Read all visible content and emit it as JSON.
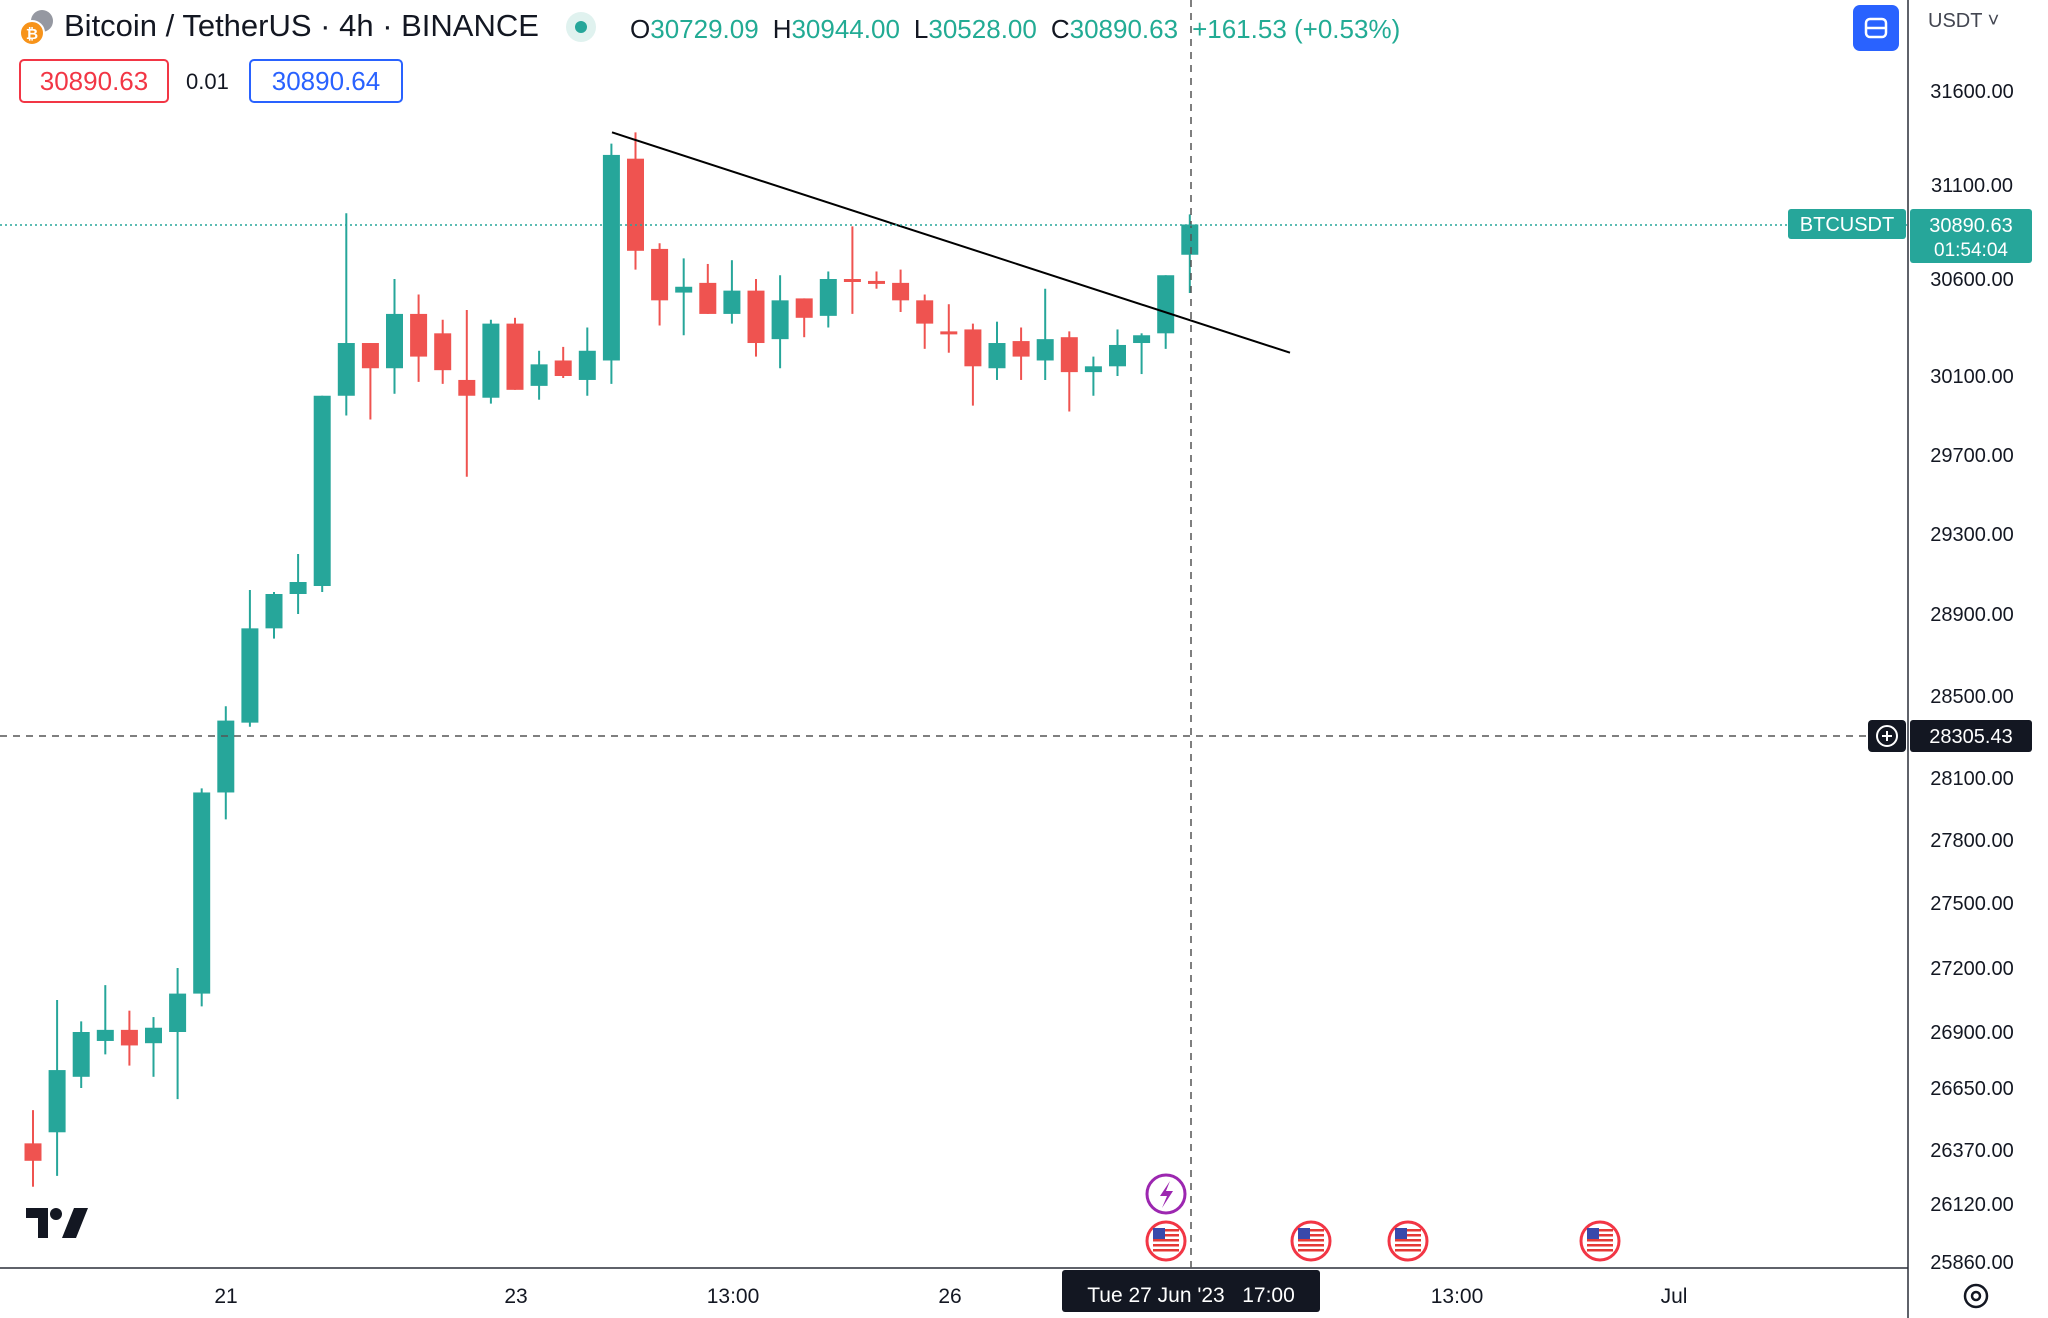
{
  "header": {
    "symbol_title": "Bitcoin / TetherUS · 4h · BINANCE",
    "ohlc": {
      "o_label": "O",
      "o_value": "30729.09",
      "h_label": "H",
      "h_value": "30944.00",
      "l_label": "L",
      "l_value": "30528.00",
      "c_label": "C",
      "c_value": "30890.63",
      "change": "+161.53 (+0.53%)"
    },
    "currency": "USDT ˅"
  },
  "trade": {
    "bid": "30890.63",
    "spread": "0.01",
    "ask": "30890.64"
  },
  "price_axis": {
    "labels": [
      "31600.00",
      "31100.00",
      "30600.00",
      "30100.00",
      "29700.00",
      "29300.00",
      "28900.00",
      "28500.00",
      "28100.00",
      "27800.00",
      "27500.00",
      "27200.00",
      "26900.00",
      "26650.00",
      "26370.00",
      "26120.00",
      "25860.00"
    ],
    "last_price_symbol": "BTCUSDT",
    "last_price_value": "30890.63",
    "countdown": "01:54:04",
    "crosshair_value": "28305.43"
  },
  "time_axis": {
    "labels": [
      "21",
      "23",
      "13:00",
      "26",
      "13:00",
      "Jul"
    ],
    "crosshair_label": "Tue 27 Jun '23   17:00"
  },
  "colors": {
    "up": "#26a69a",
    "down": "#ef5350",
    "accent": "#2962ff",
    "trendline": "#000000"
  },
  "icons": {
    "coin": "bitcoin-icon",
    "layout_button": "layout-icon",
    "settings": "settings-icon",
    "event_earnings": "lightning-icon",
    "event_economic": "us-flag-icon"
  },
  "chart_data": {
    "type": "candlestick",
    "interval": "4h",
    "series": [
      {
        "o": 26400,
        "h": 26550,
        "l": 26200,
        "c": 26320
      },
      {
        "o": 26450,
        "h": 27050,
        "l": 26250,
        "c": 26730
      },
      {
        "o": 26700,
        "h": 26950,
        "l": 26650,
        "c": 26900
      },
      {
        "o": 26860,
        "h": 27120,
        "l": 26800,
        "c": 26910
      },
      {
        "o": 26910,
        "h": 27000,
        "l": 26750,
        "c": 26840
      },
      {
        "o": 26850,
        "h": 26970,
        "l": 26700,
        "c": 26920
      },
      {
        "o": 26900,
        "h": 27200,
        "l": 26600,
        "c": 27080
      },
      {
        "o": 27080,
        "h": 28050,
        "l": 27020,
        "c": 28030
      },
      {
        "o": 28030,
        "h": 28450,
        "l": 27900,
        "c": 28380
      },
      {
        "o": 28370,
        "h": 29020,
        "l": 28350,
        "c": 28830
      },
      {
        "o": 28830,
        "h": 29010,
        "l": 28780,
        "c": 29000
      },
      {
        "o": 29000,
        "h": 29200,
        "l": 28900,
        "c": 29060
      },
      {
        "o": 29040,
        "h": 29950,
        "l": 29010,
        "c": 30000
      },
      {
        "o": 30000,
        "h": 30950,
        "l": 29900,
        "c": 30270
      },
      {
        "o": 30270,
        "h": 30250,
        "l": 29880,
        "c": 30140
      },
      {
        "o": 30140,
        "h": 30600,
        "l": 30010,
        "c": 30420
      },
      {
        "o": 30420,
        "h": 30520,
        "l": 30070,
        "c": 30200
      },
      {
        "o": 30320,
        "h": 30390,
        "l": 30060,
        "c": 30130
      },
      {
        "o": 30080,
        "h": 30440,
        "l": 29590,
        "c": 30000
      },
      {
        "o": 29990,
        "h": 30390,
        "l": 29960,
        "c": 30370
      },
      {
        "o": 30370,
        "h": 30400,
        "l": 30040,
        "c": 30030
      },
      {
        "o": 30050,
        "h": 30230,
        "l": 29980,
        "c": 30160
      },
      {
        "o": 30180,
        "h": 30250,
        "l": 30090,
        "c": 30100
      },
      {
        "o": 30080,
        "h": 30350,
        "l": 30000,
        "c": 30230
      },
      {
        "o": 30180,
        "h": 31320,
        "l": 30060,
        "c": 31260
      },
      {
        "o": 31240,
        "h": 31380,
        "l": 30650,
        "c": 30750
      },
      {
        "o": 30760,
        "h": 30790,
        "l": 30360,
        "c": 30490
      },
      {
        "o": 30530,
        "h": 30710,
        "l": 30310,
        "c": 30560
      },
      {
        "o": 30580,
        "h": 30680,
        "l": 30460,
        "c": 30420
      },
      {
        "o": 30420,
        "h": 30700,
        "l": 30370,
        "c": 30540
      },
      {
        "o": 30540,
        "h": 30600,
        "l": 30200,
        "c": 30270
      },
      {
        "o": 30290,
        "h": 30620,
        "l": 30140,
        "c": 30490
      },
      {
        "o": 30500,
        "h": 30490,
        "l": 30300,
        "c": 30400
      },
      {
        "o": 30410,
        "h": 30640,
        "l": 30350,
        "c": 30600
      },
      {
        "o": 30600,
        "h": 30880,
        "l": 30420,
        "c": 30590
      },
      {
        "o": 30590,
        "h": 30640,
        "l": 30550,
        "c": 30580
      },
      {
        "o": 30580,
        "h": 30650,
        "l": 30430,
        "c": 30490
      },
      {
        "o": 30490,
        "h": 30520,
        "l": 30240,
        "c": 30370
      },
      {
        "o": 30330,
        "h": 30470,
        "l": 30220,
        "c": 30320
      },
      {
        "o": 30340,
        "h": 30370,
        "l": 29950,
        "c": 30150
      },
      {
        "o": 30140,
        "h": 30380,
        "l": 30080,
        "c": 30270
      },
      {
        "o": 30280,
        "h": 30350,
        "l": 30080,
        "c": 30200
      },
      {
        "o": 30180,
        "h": 30550,
        "l": 30080,
        "c": 30290
      },
      {
        "o": 30300,
        "h": 30330,
        "l": 29920,
        "c": 30120
      },
      {
        "o": 30120,
        "h": 30200,
        "l": 30000,
        "c": 30150
      },
      {
        "o": 30150,
        "h": 30340,
        "l": 30100,
        "c": 30260
      },
      {
        "o": 30270,
        "h": 30320,
        "l": 30110,
        "c": 30310
      },
      {
        "o": 30320,
        "h": 30500,
        "l": 30240,
        "c": 30620
      },
      {
        "o": 30729,
        "h": 30944,
        "l": 30528,
        "c": 30890
      }
    ],
    "trendline": {
      "from": {
        "index": 25,
        "price": 31380
      },
      "to": {
        "index": 53,
        "price": 30220
      }
    },
    "last_price": 30890.63,
    "crosshair": {
      "price": 28305.43,
      "time": "Tue 27 Jun '23 17:00"
    }
  }
}
